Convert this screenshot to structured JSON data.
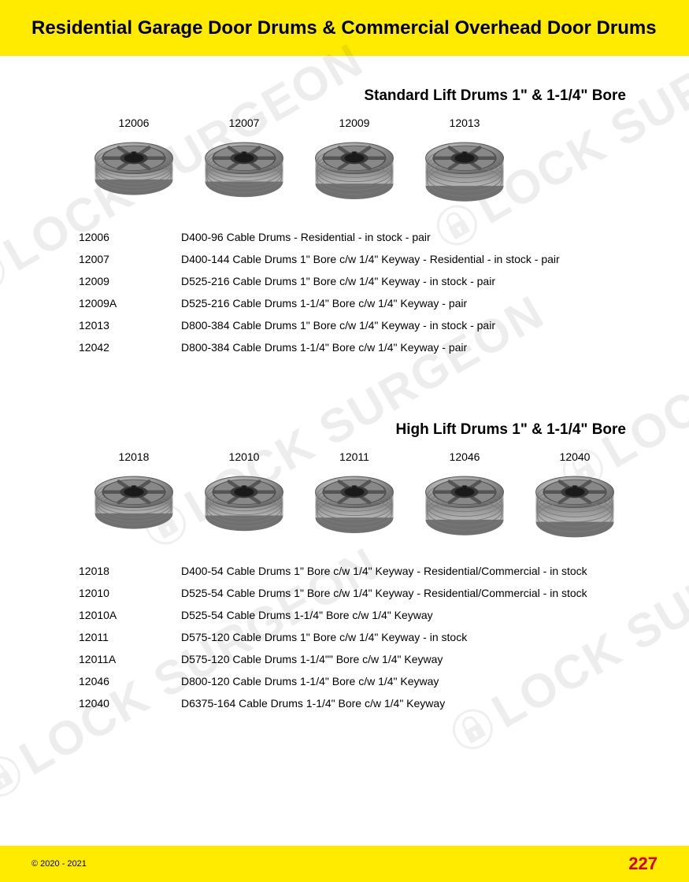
{
  "header": {
    "title": "Residential Garage Door Drums & Commercial Overhead Door Drums"
  },
  "colors": {
    "header_bg": "#ffeb00",
    "footer_bg": "#ffeb00",
    "page_num_color": "#d40000",
    "text_color": "#000000",
    "drum_metal_light": "#c8c8c8",
    "drum_metal_mid": "#999999",
    "drum_metal_dark": "#666666",
    "watermark_color": "rgba(0,0,0,0.07)"
  },
  "watermark_text": "LOCK SURGEON",
  "section1": {
    "title": "Standard Lift Drums 1\" & 1-1/4\" Bore",
    "drums": [
      {
        "sku": "12006"
      },
      {
        "sku": "12007"
      },
      {
        "sku": "12009"
      },
      {
        "sku": "12013"
      }
    ],
    "specs": [
      {
        "sku": "12006",
        "desc": "D400-96 Cable Drums - Residential - in stock - pair"
      },
      {
        "sku": "12007",
        "desc": "D400-144 Cable Drums 1\" Bore c/w 1/4\" Keyway - Residential - in stock - pair"
      },
      {
        "sku": "12009",
        "desc": "D525-216 Cable Drums 1\" Bore c/w 1/4\" Keyway - in stock - pair"
      },
      {
        "sku": "12009A",
        "desc": "D525-216 Cable Drums 1-1/4\" Bore c/w 1/4\" Keyway - pair"
      },
      {
        "sku": "12013",
        "desc": "D800-384 Cable Drums 1\" Bore c/w 1/4\" Keyway - in stock - pair"
      },
      {
        "sku": "12042",
        "desc": "D800-384 Cable Drums 1-1/4\" Bore c/w 1/4\" Keyway  - pair"
      }
    ]
  },
  "section2": {
    "title": "High Lift Drums 1\" & 1-1/4\" Bore",
    "drums": [
      {
        "sku": "12018"
      },
      {
        "sku": "12010"
      },
      {
        "sku": "12011"
      },
      {
        "sku": "12046"
      },
      {
        "sku": "12040"
      }
    ],
    "specs": [
      {
        "sku": "12018",
        "desc": "D400-54 Cable Drums 1\" Bore c/w 1/4\" Keyway - Residential/Commercial - in stock"
      },
      {
        "sku": "12010",
        "desc": "D525-54 Cable Drums 1\" Bore c/w 1/4\" Keyway - Residential/Commercial - in stock"
      },
      {
        "sku": "12010A",
        "desc": "D525-54 Cable Drums 1-1/4\" Bore c/w 1/4\" Keyway"
      },
      {
        "sku": "12011",
        "desc": "D575-120 Cable Drums 1\" Bore c/w 1/4\" Keyway - in stock"
      },
      {
        "sku": "12011A",
        "desc": "D575-120 Cable Drums 1-1/4\"\" Bore c/w 1/4\" Keyway"
      },
      {
        "sku": "12046",
        "desc": "D800-120 Cable Drums 1-1/4\" Bore c/w 1/4\" Keyway"
      },
      {
        "sku": "12040",
        "desc": "D6375-164 Cable Drums 1-1/4\" Bore c/w 1/4\" Keyway"
      }
    ]
  },
  "footer": {
    "copyright": "© 2020 - 2021",
    "page_number": "227"
  }
}
